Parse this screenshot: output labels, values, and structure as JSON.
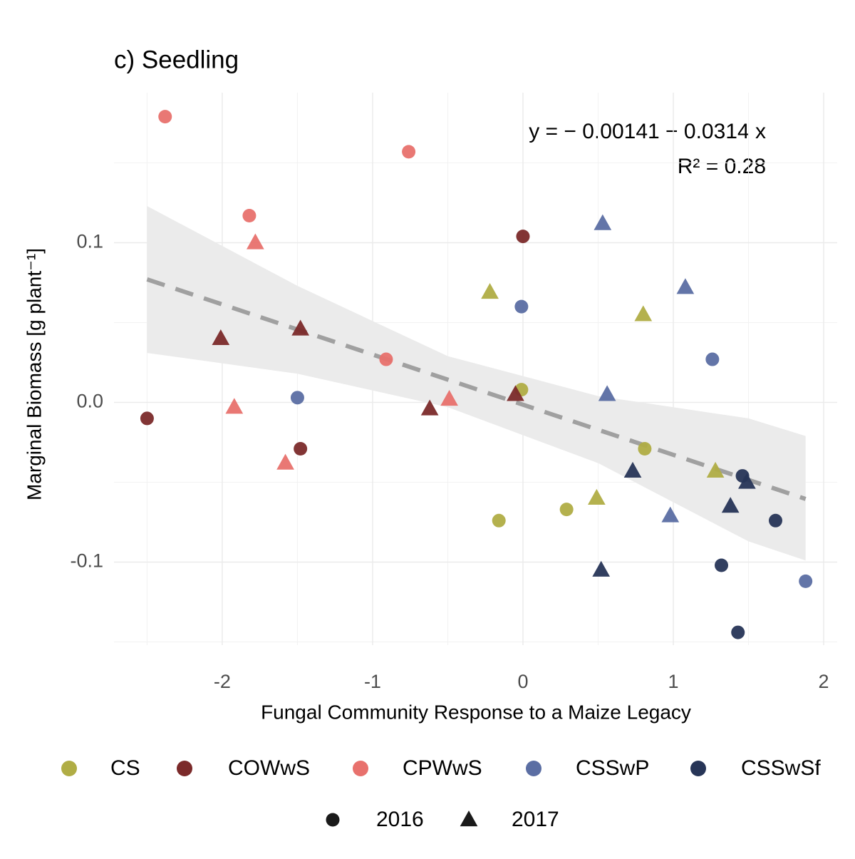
{
  "chart_data": {
    "type": "scatter",
    "title": "c) Seedling",
    "x_label": "Fungal Community Response to a Maize Legacy",
    "y_label": "Marginal Biomass [g plant⁻¹]",
    "xlim": [
      -2.72,
      2.09
    ],
    "ylim": [
      -0.152,
      0.194
    ],
    "xticks": [
      -2,
      -1,
      0,
      1,
      2
    ],
    "yticks": [
      -0.1,
      {
        "value": 0,
        "label": "0.0"
      },
      0.1
    ],
    "xminor": [
      -2.5,
      -1.5,
      -0.5,
      0.5,
      1.5
    ],
    "yminor": [
      -0.15,
      -0.05,
      0.05,
      0.15
    ],
    "grid": true,
    "series": [
      {
        "name": "CS",
        "color": "#b0ad45",
        "x": [
          -0.22,
          -0.01,
          0.8,
          0.81,
          1.28,
          0.29,
          -0.16,
          0.49
        ],
        "y": [
          0.069,
          0.008,
          0.055,
          -0.029,
          -0.043,
          -0.067,
          -0.074,
          -0.06
        ],
        "shape": [
          "triangle",
          "circle",
          "triangle",
          "circle",
          "triangle",
          "circle",
          "circle",
          "triangle"
        ]
      },
      {
        "name": "COWwS",
        "color": "#7b2a2a",
        "x": [
          -2.5,
          -2.01,
          -1.48,
          -1.48,
          -0.62,
          -0.05,
          0.0
        ],
        "y": [
          -0.01,
          0.04,
          0.046,
          -0.029,
          -0.004,
          0.005,
          0.104
        ],
        "shape": [
          "circle",
          "triangle",
          "triangle",
          "circle",
          "triangle",
          "triangle",
          "circle"
        ]
      },
      {
        "name": "CPWwS",
        "color": "#e8716d",
        "x": [
          -2.38,
          -1.82,
          -1.78,
          -1.92,
          -1.58,
          -0.91,
          -0.76,
          -0.49
        ],
        "y": [
          0.179,
          0.117,
          0.1,
          -0.003,
          -0.038,
          0.027,
          0.157,
          0.002
        ],
        "shape": [
          "circle",
          "circle",
          "triangle",
          "triangle",
          "triangle",
          "circle",
          "circle",
          "triangle"
        ]
      },
      {
        "name": "CSSwP",
        "color": "#5b6ea3",
        "x": [
          -1.5,
          -0.01,
          0.53,
          1.08,
          0.56,
          1.26,
          0.98,
          1.88
        ],
        "y": [
          0.003,
          0.06,
          0.112,
          0.072,
          0.005,
          0.027,
          -0.071,
          -0.112
        ],
        "shape": [
          "circle",
          "circle",
          "triangle",
          "triangle",
          "triangle",
          "circle",
          "triangle",
          "circle"
        ]
      },
      {
        "name": "CSSwSf",
        "color": "#273557",
        "x": [
          0.73,
          0.52,
          1.46,
          1.49,
          1.38,
          1.68,
          1.32,
          1.43
        ],
        "y": [
          -0.043,
          -0.105,
          -0.046,
          -0.05,
          -0.065,
          -0.074,
          -0.102,
          -0.144
        ],
        "shape": [
          "triangle",
          "triangle",
          "circle",
          "triangle",
          "triangle",
          "circle",
          "circle",
          "circle"
        ]
      }
    ],
    "shape_legend": [
      {
        "label": "2016",
        "shape": "circle"
      },
      {
        "label": "2017",
        "shape": "triangle"
      }
    ],
    "fit": {
      "intercept": -0.00141,
      "slope": -0.0314,
      "x_range": [
        -2.5,
        1.88
      ],
      "color": "#a0a0a0"
    },
    "band": {
      "x": [
        -2.5,
        -1.5,
        -0.5,
        0.5,
        1.5,
        1.88
      ],
      "upper": [
        0.123,
        0.073,
        0.029,
        0.004,
        -0.01,
        -0.021
      ],
      "lower": [
        0.031,
        0.018,
        -0.003,
        -0.038,
        -0.087,
        -0.099
      ],
      "color": "#ebebeb"
    },
    "equation": "y = − 0.00141 − 0.0314 x",
    "r2_label": "R² = 0.28"
  }
}
